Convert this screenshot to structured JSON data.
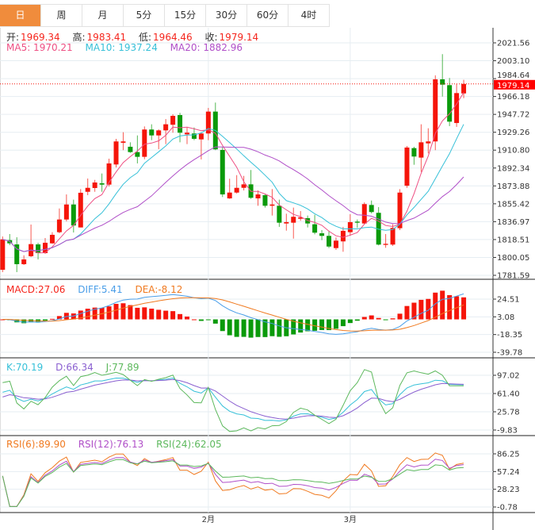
{
  "tabs": [
    {
      "label": "日",
      "active": true
    },
    {
      "label": "周"
    },
    {
      "label": "月"
    },
    {
      "label": "5分"
    },
    {
      "label": "15分"
    },
    {
      "label": "30分"
    },
    {
      "label": "60分"
    },
    {
      "label": "4时"
    }
  ],
  "ohlc_header": {
    "open_label": "开:",
    "open": "1969.34",
    "high_label": "高:",
    "high": "1983.41",
    "low_label": "低:",
    "low": "1964.46",
    "close_label": "收:",
    "close": "1979.14"
  },
  "ma_header": {
    "ma5": "MA5: 1970.21",
    "ma10": "MA10: 1937.24",
    "ma20": "MA20: 1882.96"
  },
  "macd_header": {
    "macd": "MACD:27.06",
    "diff": "DIFF:5.41",
    "dea": "DEA:-8.12"
  },
  "kdj_header": {
    "k": "K:70.19",
    "d": "D:66.34",
    "j": "J:77.89"
  },
  "rsi_header": {
    "rsi6": "RSI(6):89.90",
    "rsi12": "RSI(12):76.13",
    "rsi24": "RSI(24):62.05"
  },
  "colors": {
    "up": "#f5150a",
    "down": "#0a9a0a",
    "accent": "#f08c3c",
    "ma5": "#ee4f83",
    "ma10": "#36c0d8",
    "ma20": "#b04fc8",
    "macd": "#f5251c",
    "diff": "#4a9ee8",
    "dea": "#f07a20",
    "k": "#36c0d8",
    "d": "#8a5fd0",
    "j": "#5cb85c",
    "rsi6": "#f07a20",
    "rsi12": "#b04fc8",
    "rsi24": "#5cb85c"
  },
  "chart_data": {
    "type": "candlestick",
    "x_ticks": [
      {
        "label": "2月",
        "index": 29
      },
      {
        "label": "3月",
        "index": 49
      }
    ],
    "last_price": "1979.14",
    "price_axis": {
      "ticks": [
        "2021.56",
        "2003.10",
        "1984.64",
        "1966.18",
        "1947.72",
        "1929.26",
        "1910.80",
        "1892.34",
        "1873.88",
        "1855.42",
        "1836.97",
        "1818.51",
        "1800.05",
        "1781.59"
      ],
      "range": [
        1781.59,
        2021.56
      ]
    },
    "macd_axis": {
      "ticks": [
        "24.51",
        "3.08",
        "-18.35",
        "-39.78"
      ],
      "range": [
        -39.78,
        24.51
      ]
    },
    "kdj_axis": {
      "ticks": [
        "97.02",
        "61.40",
        "25.78",
        "-9.83"
      ],
      "range": [
        -9.83,
        97.02
      ]
    },
    "rsi_axis": {
      "ticks": [
        "86.25",
        "57.24",
        "28.23",
        "-0.78"
      ],
      "range": [
        -0.78,
        86.25
      ]
    },
    "candles_ohlc": [
      [
        1787.3,
        1821.7,
        1784.9,
        1818.7
      ],
      [
        1817.9,
        1824.2,
        1812.7,
        1814.6
      ],
      [
        1813.5,
        1820.9,
        1784.9,
        1793.1
      ],
      [
        1793.1,
        1802.3,
        1792.2,
        1798.0
      ],
      [
        1801.3,
        1834.0,
        1800.4,
        1813.8
      ],
      [
        1813.5,
        1815.2,
        1798.0,
        1804.5
      ],
      [
        1804.5,
        1820.1,
        1803.7,
        1815.2
      ],
      [
        1814.6,
        1826.1,
        1814.1,
        1823.4
      ],
      [
        1826.1,
        1850.6,
        1825.0,
        1839.2
      ],
      [
        1839.2,
        1865.1,
        1837.3,
        1854.7
      ],
      [
        1854.7,
        1859.7,
        1825.8,
        1833.0
      ],
      [
        1831.0,
        1870.6,
        1831.0,
        1866.8
      ],
      [
        1867.8,
        1881.5,
        1864.3,
        1871.9
      ],
      [
        1871.7,
        1880.1,
        1867.8,
        1877.4
      ],
      [
        1876.6,
        1886.7,
        1867.8,
        1875.2
      ],
      [
        1875.2,
        1902.0,
        1873.3,
        1897.1
      ],
      [
        1896.0,
        1922.5,
        1893.0,
        1919.8
      ],
      [
        1918.4,
        1929.3,
        1910.8,
        1919.8
      ],
      [
        1914.3,
        1918.9,
        1908.0,
        1908.8
      ],
      [
        1908.8,
        1926.0,
        1897.1,
        1903.9
      ],
      [
        1903.9,
        1935.3,
        1901.4,
        1932.1
      ],
      [
        1932.1,
        1937.5,
        1921.1,
        1926.0
      ],
      [
        1926.0,
        1932.3,
        1911.8,
        1931.2
      ],
      [
        1931.2,
        1942.9,
        1917.0,
        1937.5
      ],
      [
        1937.0,
        1947.9,
        1928.8,
        1946.2
      ],
      [
        1947.0,
        1949.3,
        1918.9,
        1928.8
      ],
      [
        1927.1,
        1934.2,
        1917.0,
        1928.8
      ],
      [
        1928.0,
        1934.2,
        1921.1,
        1922.5
      ],
      [
        1921.9,
        1929.3,
        1901.2,
        1928.0
      ],
      [
        1928.0,
        1954.4,
        1921.1,
        1950.6
      ],
      [
        1950.6,
        1959.9,
        1910.8,
        1911.6
      ],
      [
        1911.0,
        1914.3,
        1862.4,
        1865.1
      ],
      [
        1861.0,
        1881.3,
        1860.5,
        1867.0
      ],
      [
        1867.0,
        1885.0,
        1866.0,
        1871.9
      ],
      [
        1871.9,
        1884.2,
        1869.2,
        1875.5
      ],
      [
        1875.5,
        1890.3,
        1860.5,
        1861.6
      ],
      [
        1861.0,
        1869.2,
        1853.4,
        1865.1
      ],
      [
        1864.3,
        1865.1,
        1851.5,
        1853.4
      ],
      [
        1853.4,
        1870.6,
        1843.3,
        1854.7
      ],
      [
        1853.4,
        1859.7,
        1831.6,
        1835.9
      ],
      [
        1835.1,
        1845.2,
        1827.7,
        1836.5
      ],
      [
        1835.9,
        1851.5,
        1819.5,
        1842.0
      ],
      [
        1840.0,
        1847.9,
        1837.9,
        1841.4
      ],
      [
        1840.6,
        1843.3,
        1831.0,
        1835.1
      ],
      [
        1834.3,
        1844.1,
        1823.9,
        1825.6
      ],
      [
        1825.0,
        1828.3,
        1817.9,
        1822.3
      ],
      [
        1822.3,
        1827.7,
        1809.7,
        1811.3
      ],
      [
        1809.7,
        1820.7,
        1807.8,
        1817.4
      ],
      [
        1816.6,
        1831.6,
        1805.9,
        1827.5
      ],
      [
        1826.1,
        1844.7,
        1822.3,
        1836.5
      ],
      [
        1837.0,
        1839.2,
        1830.5,
        1835.9
      ],
      [
        1835.1,
        1856.9,
        1834.3,
        1855.1
      ],
      [
        1854.2,
        1858.8,
        1845.5,
        1846.9
      ],
      [
        1846.1,
        1852.0,
        1812.5,
        1813.3
      ],
      [
        1813.0,
        1824.2,
        1810.0,
        1814.1
      ],
      [
        1813.3,
        1834.3,
        1811.9,
        1830.5
      ],
      [
        1830.2,
        1870.6,
        1828.3,
        1867.0
      ],
      [
        1874.1,
        1915.1,
        1871.9,
        1913.5
      ],
      [
        1912.9,
        1914.3,
        1895.7,
        1904.2
      ],
      [
        1903.1,
        1937.5,
        1888.3,
        1918.9
      ],
      [
        1917.8,
        1933.4,
        1907.5,
        1919.8
      ],
      [
        1919.8,
        1988.0,
        1910.8,
        1983.9
      ],
      [
        1983.9,
        2009.9,
        1966.1,
        1978.4
      ],
      [
        1977.9,
        1985.3,
        1935.6,
        1940.2
      ],
      [
        1938.8,
        1979.2,
        1934.8,
        1969.7
      ],
      [
        1969.34,
        1983.41,
        1964.46,
        1979.14
      ]
    ]
  }
}
